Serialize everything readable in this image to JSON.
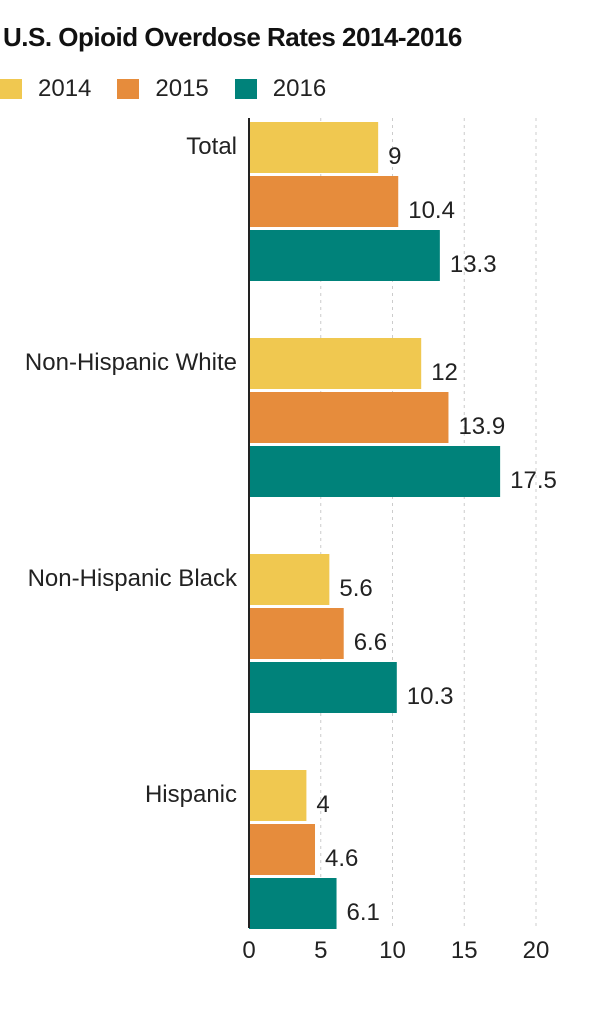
{
  "chart_data": {
    "type": "bar",
    "orientation": "horizontal",
    "title": "U.S. Opioid Overdose Rates 2014-2016",
    "categories": [
      "Total",
      "Non-Hispanic White",
      "Non-Hispanic Black",
      "Hispanic"
    ],
    "series": [
      {
        "name": "2014",
        "color": "#f0c850",
        "values": [
          9,
          12,
          5.6,
          4
        ]
      },
      {
        "name": "2015",
        "color": "#e68c3c",
        "values": [
          10.4,
          13.9,
          6.6,
          4.6
        ]
      },
      {
        "name": "2016",
        "color": "#00827a",
        "values": [
          13.3,
          17.5,
          10.3,
          6.1
        ]
      }
    ],
    "xlim": [
      0,
      20
    ],
    "xticks": [
      0,
      5,
      10,
      15,
      20
    ],
    "grid": true,
    "legend": "top-left"
  }
}
